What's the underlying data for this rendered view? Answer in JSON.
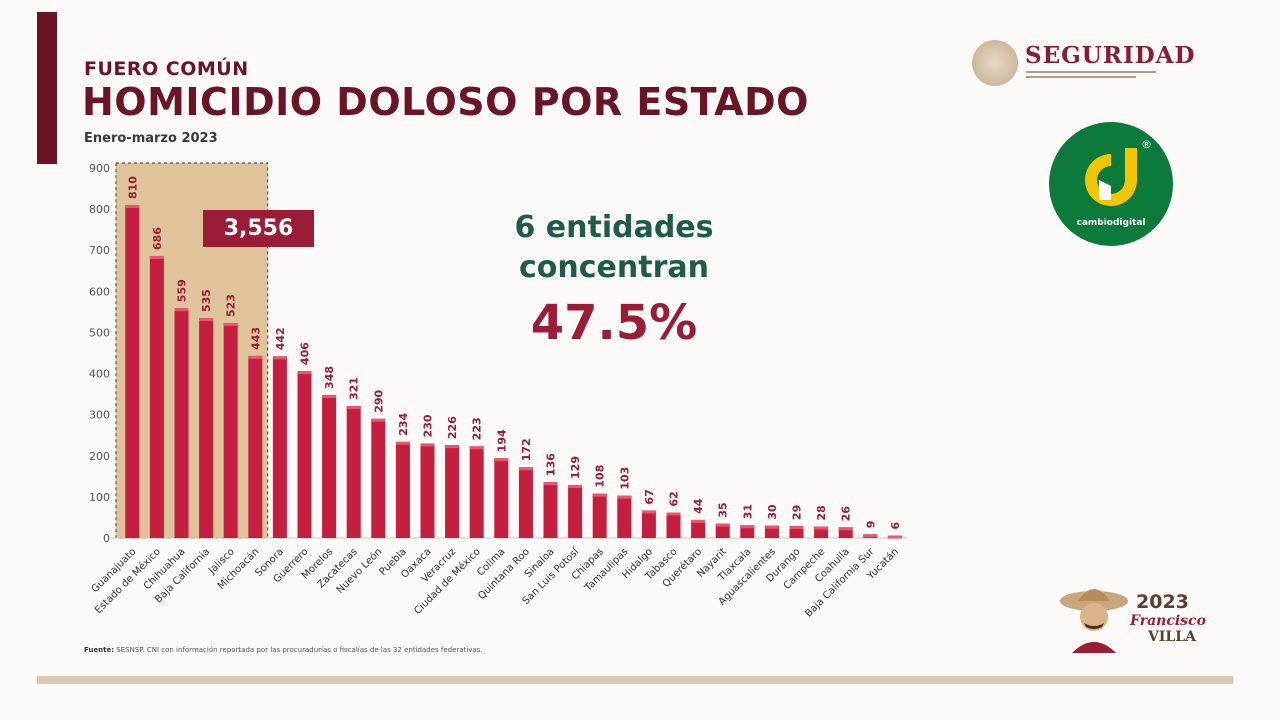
{
  "header": {
    "kicker": "FUERO COMÚN",
    "title": "HOMICIDIO DOLOSO POR ESTADO",
    "period": "Enero-marzo 2023"
  },
  "brand": {
    "name": "SEGURIDAD",
    "seal_icon": "national-seal-icon"
  },
  "watermark": {
    "letter": "d",
    "text": "cambiodigital",
    "registered": "®",
    "color": "#0b7a3b",
    "accent": "#f2c500"
  },
  "callout": {
    "line1": "6 entidades",
    "line2": "concentran",
    "percent": "47.5%"
  },
  "highlight": {
    "total": "3,556"
  },
  "source": {
    "label": "Fuente:",
    "text": "SESNSP. CNI con información reportada por las procuradurías o fiscalías de las 32 entidades federativas."
  },
  "footer_logo": {
    "year": "2023",
    "name": "Francisco",
    "surname": "VILLA"
  },
  "colors": {
    "bar": "#c41f3e",
    "bar_dark": "#9b1c37",
    "label": "#9b1c37",
    "highlight_fill": "#d9b98a",
    "title": "#6b1428",
    "callout_green": "#1e5b4a"
  },
  "chart_data": {
    "type": "bar",
    "title": "HOMICIDIO DOLOSO POR ESTADO",
    "ylim": [
      0,
      900
    ],
    "yticks": [
      0,
      100,
      200,
      300,
      400,
      500,
      600,
      700,
      800,
      900
    ],
    "highlighted_count": 6,
    "categories": [
      "Guanajuato",
      "Estado de México",
      "Chihuahua",
      "Baja California",
      "Jalisco",
      "Michoacán",
      "Sonora",
      "Guerrero",
      "Morelos",
      "Zacatecas",
      "Nuevo León",
      "Puebla",
      "Oaxaca",
      "Veracruz",
      "Ciudad de México",
      "Colima",
      "Quintana Roo",
      "Sinaloa",
      "San Luis Potosí",
      "Chiapas",
      "Tamaulipas",
      "Hidalgo",
      "Tabasco",
      "Querétaro",
      "Nayarit",
      "Tlaxcala",
      "Aguascalientes",
      "Durango",
      "Campeche",
      "Coahuila",
      "Baja California Sur",
      "Yucatán"
    ],
    "values": [
      810,
      686,
      559,
      535,
      523,
      443,
      442,
      406,
      348,
      321,
      290,
      234,
      230,
      226,
      223,
      194,
      172,
      136,
      129,
      108,
      103,
      67,
      62,
      44,
      35,
      31,
      30,
      29,
      28,
      26,
      9,
      6
    ]
  }
}
